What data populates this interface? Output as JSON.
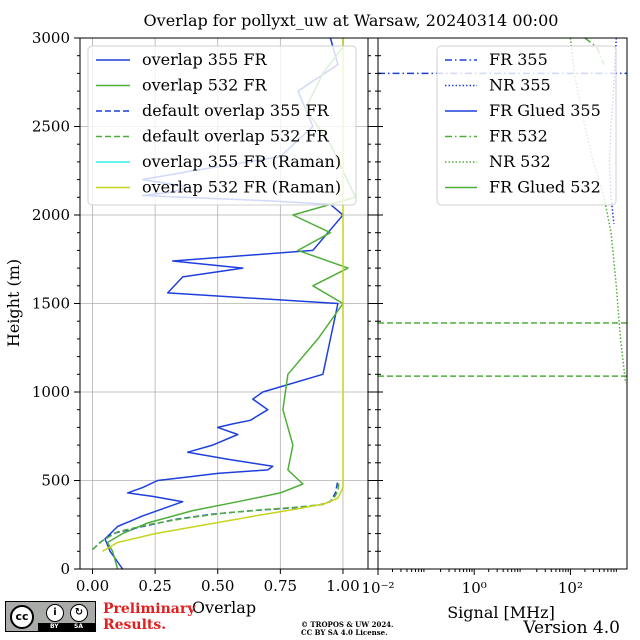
{
  "title": "Overlap for pollyxt_uw at Warsaw, 20240314 00:00",
  "chart_data": [
    {
      "type": "line",
      "xlabel": "Overlap",
      "ylabel": "Height (m)",
      "xlim": [
        -0.05,
        1.1
      ],
      "ylim": [
        0,
        3000
      ],
      "xticks": [
        0.0,
        0.25,
        0.5,
        0.75,
        1.0
      ],
      "xtick_labels": [
        "0.00",
        "0.25",
        "0.50",
        "0.75",
        "1.00"
      ],
      "yticks": [
        0,
        500,
        1000,
        1500,
        2000,
        2500,
        3000
      ],
      "ytick_labels": [
        "0",
        "500",
        "1000",
        "1500",
        "2000",
        "2500",
        "3000"
      ],
      "grid": true,
      "legend": "top-right",
      "series": [
        {
          "name": "overlap 355 FR",
          "color": "#1f3fdc",
          "style": "solid",
          "x": [
            0.12,
            0.07,
            0.05,
            0.1,
            0.2,
            0.28,
            0.36,
            0.24,
            0.14,
            0.2,
            0.26,
            0.38,
            0.5,
            0.7,
            0.72,
            0.54,
            0.38,
            0.48,
            0.58,
            0.5,
            0.56,
            0.63,
            0.7,
            0.64,
            0.68,
            0.92,
            0.95,
            0.98,
            0.3,
            0.36,
            0.6,
            0.32,
            0.88,
            0.94,
            1.0,
            0.95,
            0.7,
            0.2,
            0.32,
            0.38,
            0.2,
            0.4,
            0.75,
            0.88,
            0.82,
            0.98,
            0.95
          ],
          "y": [
            0,
            100,
            170,
            240,
            300,
            340,
            380,
            410,
            430,
            460,
            500,
            520,
            540,
            560,
            580,
            620,
            660,
            700,
            760,
            800,
            820,
            840,
            900,
            960,
            1000,
            1100,
            1300,
            1500,
            1560,
            1650,
            1700,
            1740,
            1800,
            1900,
            2000,
            2060,
            2080,
            2110,
            2130,
            2160,
            2200,
            2250,
            2330,
            2500,
            2700,
            2850,
            3000
          ]
        },
        {
          "name": "overlap 532 FR",
          "color": "#4fae3a",
          "style": "solid",
          "x": [
            0.1,
            0.08,
            0.06,
            0.12,
            0.22,
            0.4,
            0.58,
            0.75,
            0.84,
            0.78,
            0.8,
            0.76,
            0.78,
            0.9,
            1.0,
            0.88,
            1.02,
            0.82,
            0.95,
            0.8,
            1.05,
            0.95,
            0.85,
            0.92,
            1.0,
            1.0
          ],
          "y": [
            0,
            100,
            150,
            200,
            260,
            330,
            380,
            430,
            480,
            560,
            700,
            900,
            1100,
            1300,
            1500,
            1600,
            1700,
            1800,
            1900,
            2000,
            2100,
            2400,
            2600,
            2800,
            2950,
            3000
          ]
        },
        {
          "name": "default overlap 355 FR",
          "color": "#1f3fdc",
          "style": "dashed",
          "x": [
            0.0,
            0.03,
            0.08,
            0.2,
            0.33,
            0.48,
            0.64,
            0.8,
            0.9,
            0.95,
            0.97,
            0.98
          ],
          "y": [
            110,
            150,
            200,
            240,
            280,
            310,
            330,
            345,
            360,
            380,
            430,
            500
          ]
        },
        {
          "name": "default overlap 532 FR",
          "color": "#4fae3a",
          "style": "dashed",
          "x": [
            0.0,
            0.04,
            0.1,
            0.22,
            0.36,
            0.52,
            0.68,
            0.82,
            0.92,
            0.96,
            0.98,
            0.985
          ],
          "y": [
            110,
            160,
            210,
            250,
            285,
            315,
            335,
            350,
            365,
            390,
            440,
            500
          ]
        },
        {
          "name": "overlap 355 FR (Raman)",
          "color": "#35f0ea",
          "style": "solid",
          "x": [],
          "y": []
        },
        {
          "name": "overlap 532 FR (Raman)",
          "color": "#c6d41e",
          "style": "solid",
          "x": [
            0.04,
            0.1,
            0.25,
            0.45,
            0.65,
            0.82,
            0.93,
            0.98,
            1.0,
            1.0,
            1.0,
            1.0,
            1.0,
            1.0,
            1.0,
            1.0
          ],
          "y": [
            100,
            150,
            200,
            250,
            300,
            340,
            370,
            400,
            460,
            800,
            1200,
            1600,
            2000,
            2400,
            2800,
            3000
          ]
        }
      ]
    },
    {
      "type": "line",
      "xlabel": "Signal [MHz]",
      "xscale": "log",
      "xlim": [
        0.01,
        1500
      ],
      "ylim": [
        0,
        3000
      ],
      "xticks": [
        0.01,
        1,
        100
      ],
      "xtick_labels": [
        "10⁻²",
        "10⁰",
        "10²"
      ],
      "legend": "top-right",
      "series": [
        {
          "name": "FR 355",
          "color": "#1f3fdc",
          "style": "dashdot",
          "x": [
            0.01,
            1500
          ],
          "y": [
            2800,
            2800
          ]
        },
        {
          "name": "NR 355",
          "color": "#1f3fdc",
          "style": "dotted",
          "x": [
            900,
            800,
            700,
            650,
            700,
            800
          ],
          "y": [
            3000,
            2750,
            2500,
            2300,
            2100,
            1950
          ]
        },
        {
          "name": "FR Glued 355",
          "color": "#1f3fdc",
          "style": "solid",
          "x": [],
          "y": []
        },
        {
          "name": "FR 532",
          "color": "#4fae3a",
          "style": "dashdot",
          "x": [
            200,
            350,
            500
          ],
          "y": [
            3000,
            2950,
            2850
          ]
        },
        {
          "name": "NR 532",
          "color": "#4fae3a",
          "style": "dotted",
          "x": [
            100,
            120,
            200,
            300,
            500,
            700,
            900,
            1100,
            1400
          ],
          "y": [
            3000,
            2800,
            2500,
            2300,
            2100,
            1900,
            1600,
            1300,
            1050
          ]
        },
        {
          "name": "FR Glued 532",
          "color": "#4fae3a",
          "style": "dashed",
          "x": [
            0.01,
            1500,
            null,
            0.01,
            1500
          ],
          "y": [
            1390,
            1390,
            null,
            1090,
            1090
          ]
        }
      ]
    }
  ],
  "footer": {
    "preliminary": "Preliminary Results.",
    "copyright_line1": "© TROPOS & UW 2024.",
    "copyright_line2": "CC BY SA 4.0 License.",
    "version": "Version 4.0",
    "cc_badge": {
      "cc": "cc",
      "by": "BY",
      "sa": "SA"
    }
  }
}
